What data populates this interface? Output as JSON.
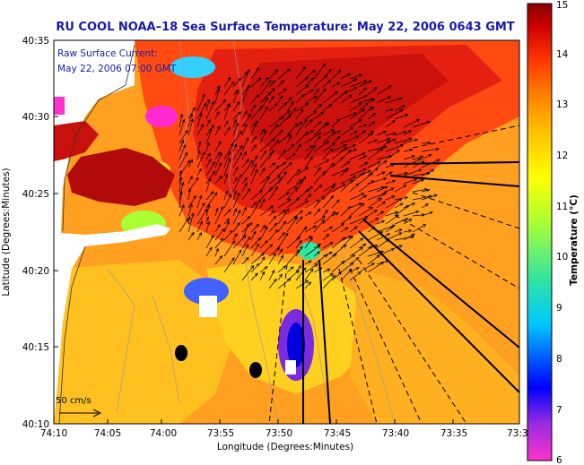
{
  "title": "RU COOL  NOAA–18  Sea Surface Temperature:  May 22, 2006 0643 GMT",
  "legend": {
    "line1": "Raw Surface Current:",
    "line2": "May 22, 2006 07:00 GMT"
  },
  "scale_label": "50 cm/s",
  "axes": {
    "xlabel": "Longitude (Degrees:Minutes)",
    "ylabel": "Latitude (Degrees:Minutes)",
    "xticks": [
      "74:10",
      "74:05",
      "74:00",
      "73:55",
      "73:50",
      "73:45",
      "73:40",
      "73:35",
      "73:3"
    ],
    "yticks": [
      "40:35",
      "40:30",
      "40:25",
      "40:20",
      "40:15",
      "40:10"
    ]
  },
  "colorbar": {
    "label": "Temperature (°C)",
    "ticks": [
      "15",
      "14",
      "13",
      "12",
      "11",
      "10",
      "9",
      "8",
      "7",
      "6"
    ],
    "range": [
      6,
      15
    ],
    "colors": [
      "#ff33cc",
      "#8a2be2",
      "#0000ff",
      "#00c8ff",
      "#33e6a0",
      "#aaff33",
      "#ffff00",
      "#ffc000",
      "#ff8000",
      "#ff3300",
      "#cc0000",
      "#8b0000"
    ]
  },
  "map": {
    "land_color": "#ffffff",
    "sea_base_color": "#ffa020"
  }
}
